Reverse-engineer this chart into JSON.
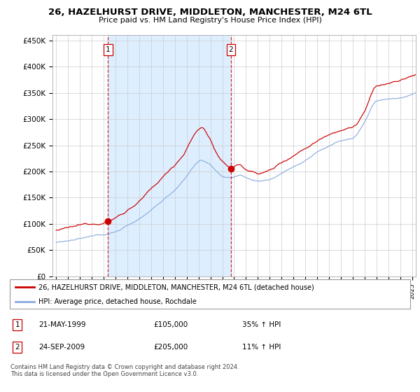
{
  "title": "26, HAZELHURST DRIVE, MIDDLETON, MANCHESTER, M24 6TL",
  "subtitle": "Price paid vs. HM Land Registry's House Price Index (HPI)",
  "ylabel_ticks": [
    "£0",
    "£50K",
    "£100K",
    "£150K",
    "£200K",
    "£250K",
    "£300K",
    "£350K",
    "£400K",
    "£450K"
  ],
  "ytick_vals": [
    0,
    50000,
    100000,
    150000,
    200000,
    250000,
    300000,
    350000,
    400000,
    450000
  ],
  "ylim": [
    0,
    460000
  ],
  "xlim_start": 1994.7,
  "xlim_end": 2025.3,
  "sale1_date": 1999.38,
  "sale1_price": 105000,
  "sale1_label": "1",
  "sale2_date": 2009.73,
  "sale2_price": 205000,
  "sale2_label": "2",
  "red_line_color": "#cc0000",
  "blue_line_color": "#88aadd",
  "shade_color": "#ddeeff",
  "marker_color": "#cc0000",
  "vline_color": "#cc0000",
  "legend_label_red": "26, HAZELHURST DRIVE, MIDDLETON, MANCHESTER, M24 6TL (detached house)",
  "legend_label_blue": "HPI: Average price, detached house, Rochdale",
  "table_row1": [
    "1",
    "21-MAY-1999",
    "£105,000",
    "35% ↑ HPI"
  ],
  "table_row2": [
    "2",
    "24-SEP-2009",
    "£205,000",
    "11% ↑ HPI"
  ],
  "footer": "Contains HM Land Registry data © Crown copyright and database right 2024.\nThis data is licensed under the Open Government Licence v3.0.",
  "background_color": "#ffffff",
  "grid_color": "#cccccc"
}
